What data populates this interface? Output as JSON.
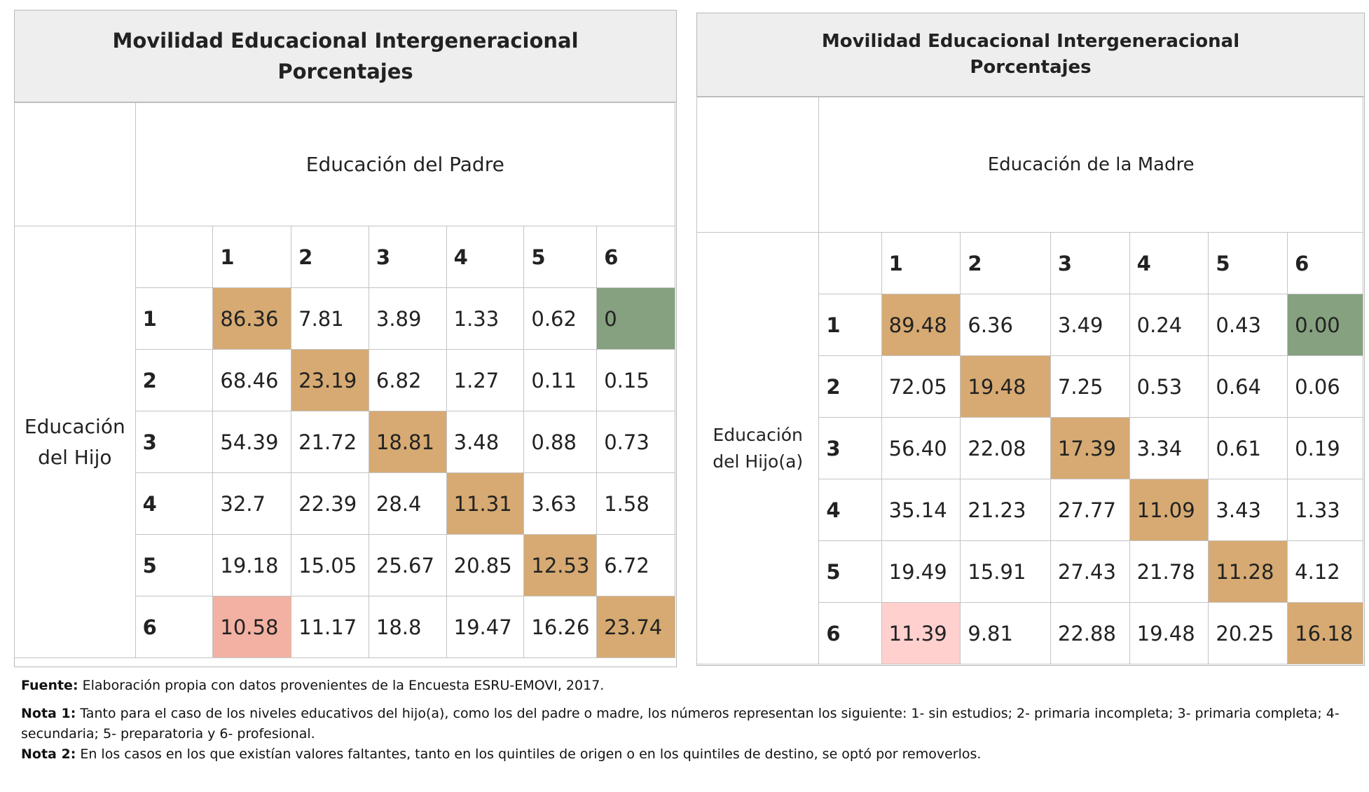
{
  "left": {
    "title_line1": "Movilidad Educacional Intergeneracional",
    "title_line2": "Porcentajes",
    "column_header": "Educación del Padre",
    "row_header_line1": "Educación",
    "row_header_line2": "del Hijo",
    "col_labels": [
      "1",
      "2",
      "3",
      "4",
      "5",
      "6"
    ],
    "rows": [
      {
        "label": "1",
        "values": [
          "86.36",
          "7.81",
          "3.89",
          "1.33",
          "0.62",
          "0"
        ]
      },
      {
        "label": "2",
        "values": [
          "68.46",
          "23.19",
          "6.82",
          "1.27",
          "0.11",
          "0.15"
        ]
      },
      {
        "label": "3",
        "values": [
          "54.39",
          "21.72",
          "18.81",
          "3.48",
          "0.88",
          "0.73"
        ]
      },
      {
        "label": "4",
        "values": [
          "32.7",
          "22.39",
          "28.4",
          "11.31",
          "3.63",
          "1.58"
        ]
      },
      {
        "label": "5",
        "values": [
          "19.18",
          "15.05",
          "25.67",
          "20.85",
          "12.53",
          "6.72"
        ]
      },
      {
        "label": "6",
        "values": [
          "10.58",
          "11.17",
          "18.8",
          "19.47",
          "16.26",
          "23.74"
        ]
      }
    ],
    "highlight_colors": {
      "diagonal": "#d6aa72",
      "top_right": "#85a17f",
      "bottom_left": "#f2b1a3"
    }
  },
  "right": {
    "title_line1": "Movilidad Educacional Intergeneracional",
    "title_line2": "Porcentajes",
    "column_header": "Educación de la Madre",
    "row_header_line1": "Educación",
    "row_header_line2": "del Hijo(a)",
    "col_labels": [
      "1",
      "2",
      "3",
      "4",
      "5",
      "6"
    ],
    "rows": [
      {
        "label": "1",
        "values": [
          "89.48",
          "6.36",
          "3.49",
          "0.24",
          "0.43",
          "0.00"
        ]
      },
      {
        "label": "2",
        "values": [
          "72.05",
          "19.48",
          "7.25",
          "0.53",
          "0.64",
          "0.06"
        ]
      },
      {
        "label": "3",
        "values": [
          "56.40",
          "22.08",
          "17.39",
          "3.34",
          "0.61",
          "0.19"
        ]
      },
      {
        "label": "4",
        "values": [
          "35.14",
          "21.23",
          "27.77",
          "11.09",
          "3.43",
          "1.33"
        ]
      },
      {
        "label": "5",
        "values": [
          "19.49",
          "15.91",
          "27.43",
          "21.78",
          "11.28",
          "4.12"
        ]
      },
      {
        "label": "6",
        "values": [
          "11.39",
          "9.81",
          "22.88",
          "19.48",
          "20.25",
          "16.18"
        ]
      }
    ],
    "highlight_colors": {
      "diagonal": "#d6aa72",
      "top_right": "#85a17f",
      "bottom_left": "#ffd0ce"
    }
  },
  "notes": {
    "fuente_label": "Fuente:",
    "fuente_text": " Elaboración propia con datos provenientes de la Encuesta ESRU-EMOVI, 2017.",
    "nota1_label": "Nota 1:",
    "nota1_text": "  Tanto para el caso de los niveles educativos del hijo(a), como los del padre o madre, los números representan los siguiente: 1- sin estudios; 2- primaria incompleta; 3- primaria completa; 4- secundaria; 5- preparatoria y 6- profesional.",
    "nota2_label": "Nota 2:",
    "nota2_text": " En los casos en los que existían valores faltantes, tanto en los quintiles de origen o en los quintiles de destino, se optó por removerlos."
  }
}
